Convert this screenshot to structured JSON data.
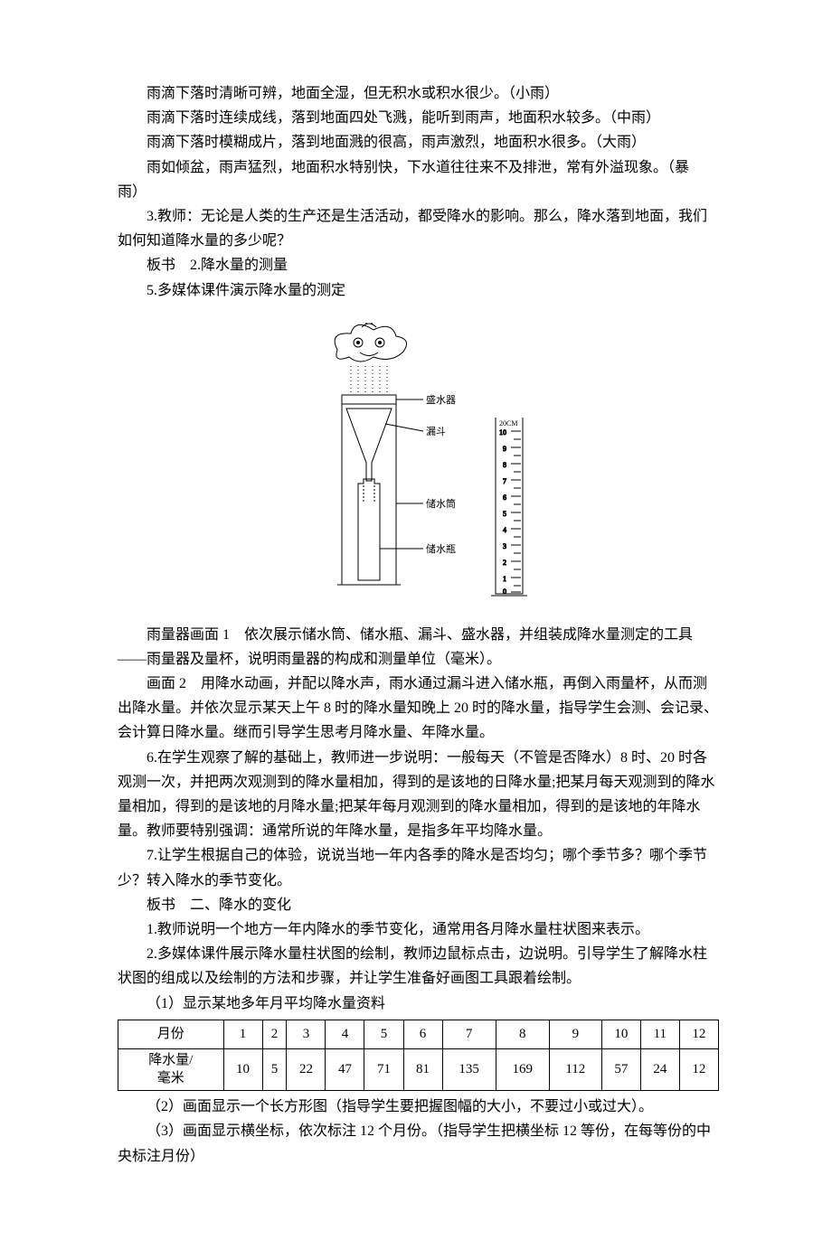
{
  "intro": {
    "p1": "雨滴下落时清晰可辨，地面全湿，但无积水或积水很少。（小雨）",
    "p2": "雨滴下落时连续成线，落到地面四处飞溅，能听到雨声，地面积水较多。（中雨）",
    "p3": "雨滴下落时模糊成片，落到地面溅的很高，雨声激烈，地面积水很多。（大雨）",
    "p4a": "雨如倾盆，雨声猛烈，地面积水特别快，下水道往往来不及排泄，常有外溢现象。（暴",
    "p4b": "雨）",
    "p5": "3.教师：无论是人类的生产还是生活活动，都受降水的影响。那么，降水落到地面，我们如何知道降水量的多少呢？",
    "p6": "板书　2.降水量的测量",
    "p7": "5.多媒体课件演示降水量的测定"
  },
  "figure": {
    "labels": {
      "top": "盛水器",
      "funnel": "漏斗",
      "tube": "储水筒",
      "bottle": "储水瓶"
    },
    "stroke": "#000000"
  },
  "body": {
    "p1": "雨量器画面 1　依次展示储水筒、储水瓶、漏斗、盛水器，并组装成降水量测定的工具——雨量器及量杯，说明雨量器的构成和测量单位（毫米）。",
    "p2": "画面 2　用降水动画，并配以降水声，雨水通过漏斗进入储水瓶，再倒入雨量杯，从而测出降水量。并依次显示某天上午 8 时的降水量知晚上 20 时的降水量，指导学生会测、会记录、会计算日降水量。继而引导学生思考月降水量、年降水量。",
    "p3": "6.在学生观察了解的基础上，教师进一步说明：一般每天（不管是否降水）8 时、20 时各观测一次，并把两次观测到的降水量相加，得到的是该地的日降水量;把某月每天观测到的降水量相加，得到的是该地的月降水量;把某年每月观测到的降水量相加，得到的是该地的年降水量。教师要特别强调：通常所说的年降水量，是指多年平均降水量。",
    "p4": "7.让学生根据自己的体验，说说当地一年内各季的降水是否均匀；哪个季节多？哪个季节少？转入降水的季节变化。",
    "p5": "板书　二、降水的变化",
    "p6": "1.教师说明一个地方一年内降水的季节变化，通常用各月降水量柱状图来表示。",
    "p7": "2.多媒体课件展示降水量柱状图的绘制，教师边鼠标点击，边说明。引导学生了解降水柱状图的组成以及绘制的方法和步骤，并让学生准备好画图工具跟着绘制。",
    "p8": "（1）显示某地多年月平均降水量资料"
  },
  "table": {
    "row1_head": "月份",
    "row2_head": "降水量/<br>毫米",
    "months": [
      "1",
      "2",
      "3",
      "4",
      "5",
      "6",
      "7",
      "8",
      "9",
      "10",
      "11",
      "12"
    ],
    "values": [
      "10",
      "5",
      "22",
      "47",
      "71",
      "81",
      "135",
      "169",
      "112",
      "57",
      "24",
      "12"
    ]
  },
  "tail": {
    "p1": "（2）画面显示一个长方形图（指导学生要把握图幅的大小，不要过小或过大）。",
    "p2": "（3）画面显示横坐标，依次标注 12 个月份。（指导学生把横坐标 12 等份，在每等份的中央标注月份）"
  }
}
